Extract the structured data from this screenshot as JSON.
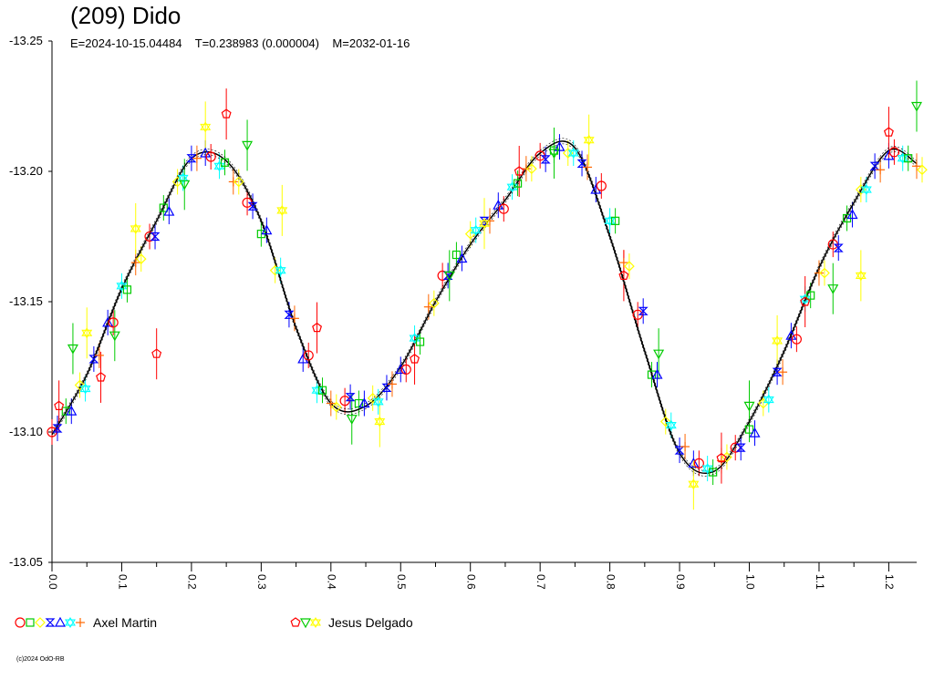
{
  "title": "(209) Dido",
  "subtitle": "E=2024-10-15.04484    T=0.238983 (0.000004)    M=2032-01-16",
  "copyright": "(c)2024 OdO-RB",
  "colors": {
    "curve": "#000000",
    "axis": "#000000",
    "red": "#ff0000",
    "green": "#00cc00",
    "yellow": "#ffff00",
    "blue": "#0000ff",
    "cyan": "#00ffff",
    "orange": "#ff6600"
  },
  "legend": [
    {
      "label": "Axel Martin",
      "symbols": [
        "circle",
        "square",
        "diamond",
        "hourglass",
        "triangle",
        "star",
        "cross4"
      ],
      "colors": [
        "#ff0000",
        "#00cc00",
        "#ffff00",
        "#0000ff",
        "#0000ff",
        "#00ffff",
        "#ff6600"
      ]
    },
    {
      "label": "Jesus Delgado",
      "symbols": [
        "pentagon",
        "tri-down",
        "star6"
      ],
      "colors": [
        "#ff0000",
        "#00cc00",
        "#ffff00"
      ]
    }
  ],
  "chart_data": {
    "type": "scatter",
    "title": "(209) Dido",
    "xlabel": "",
    "ylabel": "",
    "xlim": [
      0.0,
      1.24
    ],
    "ylim": [
      -13.25,
      -13.05
    ],
    "y_reversed": true,
    "yticks": [
      "-13.25",
      "-13.20",
      "-13.15",
      "-13.10",
      "-13.05"
    ],
    "ytick_values": [
      -13.25,
      -13.2,
      -13.15,
      -13.1,
      -13.05
    ],
    "xticks": [
      "0.0",
      "0.1",
      "0.2",
      "0.3",
      "0.4",
      "0.5",
      "0.6",
      "0.7",
      "0.8",
      "0.9",
      "1.0",
      "1.1",
      "1.2"
    ],
    "xtick_values": [
      0.0,
      0.1,
      0.2,
      0.3,
      0.4,
      0.5,
      0.6,
      0.7,
      0.8,
      0.9,
      1.0,
      1.1,
      1.2
    ],
    "period_fraction": 1.0,
    "fit_curve": {
      "x": [
        0.0,
        0.05,
        0.1,
        0.15,
        0.2,
        0.25,
        0.3,
        0.35,
        0.4,
        0.45,
        0.5,
        0.55,
        0.6,
        0.65,
        0.7,
        0.75,
        0.8,
        0.85,
        0.9,
        0.95,
        1.0,
        1.05,
        1.1,
        1.15,
        1.2,
        1.24
      ],
      "y": [
        -13.099,
        -13.122,
        -13.155,
        -13.181,
        -13.205,
        -13.204,
        -13.181,
        -13.14,
        -13.111,
        -13.11,
        -13.125,
        -13.15,
        -13.172,
        -13.189,
        -13.207,
        -13.209,
        -13.175,
        -13.131,
        -13.092,
        -13.085,
        -13.104,
        -13.131,
        -13.163,
        -13.188,
        -13.208,
        -13.203
      ]
    },
    "series": [
      {
        "name": "Axel Martin",
        "x": [
          0.0,
          0.02,
          0.04,
          0.06,
          0.08,
          0.1,
          0.12,
          0.14,
          0.16,
          0.18,
          0.2,
          0.22,
          0.24,
          0.26,
          0.28,
          0.3,
          0.32,
          0.34,
          0.36,
          0.38,
          0.4,
          0.42,
          0.44,
          0.46,
          0.48,
          0.5,
          0.52,
          0.54,
          0.56,
          0.58,
          0.6,
          0.62,
          0.64,
          0.66,
          0.68,
          0.7,
          0.72,
          0.74,
          0.76,
          0.78,
          0.8,
          0.82,
          0.84,
          0.86,
          0.88,
          0.9,
          0.92,
          0.94,
          0.96,
          0.98,
          1.0,
          1.02,
          1.04,
          1.06,
          1.08,
          1.1,
          1.12,
          1.14,
          1.16,
          1.18,
          1.2,
          1.22,
          1.24
        ],
        "y": [
          -13.1,
          -13.108,
          -13.118,
          -13.128,
          -13.142,
          -13.156,
          -13.165,
          -13.175,
          -13.186,
          -13.196,
          -13.205,
          -13.207,
          -13.202,
          -13.196,
          -13.188,
          -13.176,
          -13.162,
          -13.145,
          -13.128,
          -13.116,
          -13.111,
          -13.112,
          -13.111,
          -13.113,
          -13.117,
          -13.124,
          -13.136,
          -13.148,
          -13.16,
          -13.168,
          -13.176,
          -13.181,
          -13.187,
          -13.194,
          -13.201,
          -13.206,
          -13.208,
          -13.207,
          -13.203,
          -13.193,
          -13.181,
          -13.165,
          -13.145,
          -13.122,
          -13.104,
          -13.093,
          -13.088,
          -13.086,
          -13.089,
          -13.094,
          -13.101,
          -13.111,
          -13.123,
          -13.137,
          -13.151,
          -13.161,
          -13.172,
          -13.182,
          -13.193,
          -13.202,
          -13.206,
          -13.205,
          -13.202
        ]
      },
      {
        "name": "Jesus Delgado",
        "x": [
          0.01,
          0.03,
          0.05,
          0.07,
          0.09,
          0.12,
          0.15,
          0.19,
          0.22,
          0.25,
          0.28,
          0.33,
          0.38,
          0.43,
          0.47,
          0.52,
          0.57,
          0.62,
          0.67,
          0.72,
          0.77,
          0.82,
          0.87,
          0.92,
          0.96,
          1.0,
          1.04,
          1.08,
          1.12,
          1.16,
          1.2,
          1.24
        ],
        "y": [
          -13.11,
          -13.132,
          -13.138,
          -13.121,
          -13.137,
          -13.178,
          -13.13,
          -13.195,
          -13.217,
          -13.222,
          -13.21,
          -13.185,
          -13.14,
          -13.105,
          -13.104,
          -13.128,
          -13.16,
          -13.18,
          -13.2,
          -13.207,
          -13.212,
          -13.16,
          -13.13,
          -13.08,
          -13.09,
          -13.11,
          -13.135,
          -13.15,
          -13.155,
          -13.16,
          -13.215,
          -13.225
        ]
      }
    ]
  }
}
